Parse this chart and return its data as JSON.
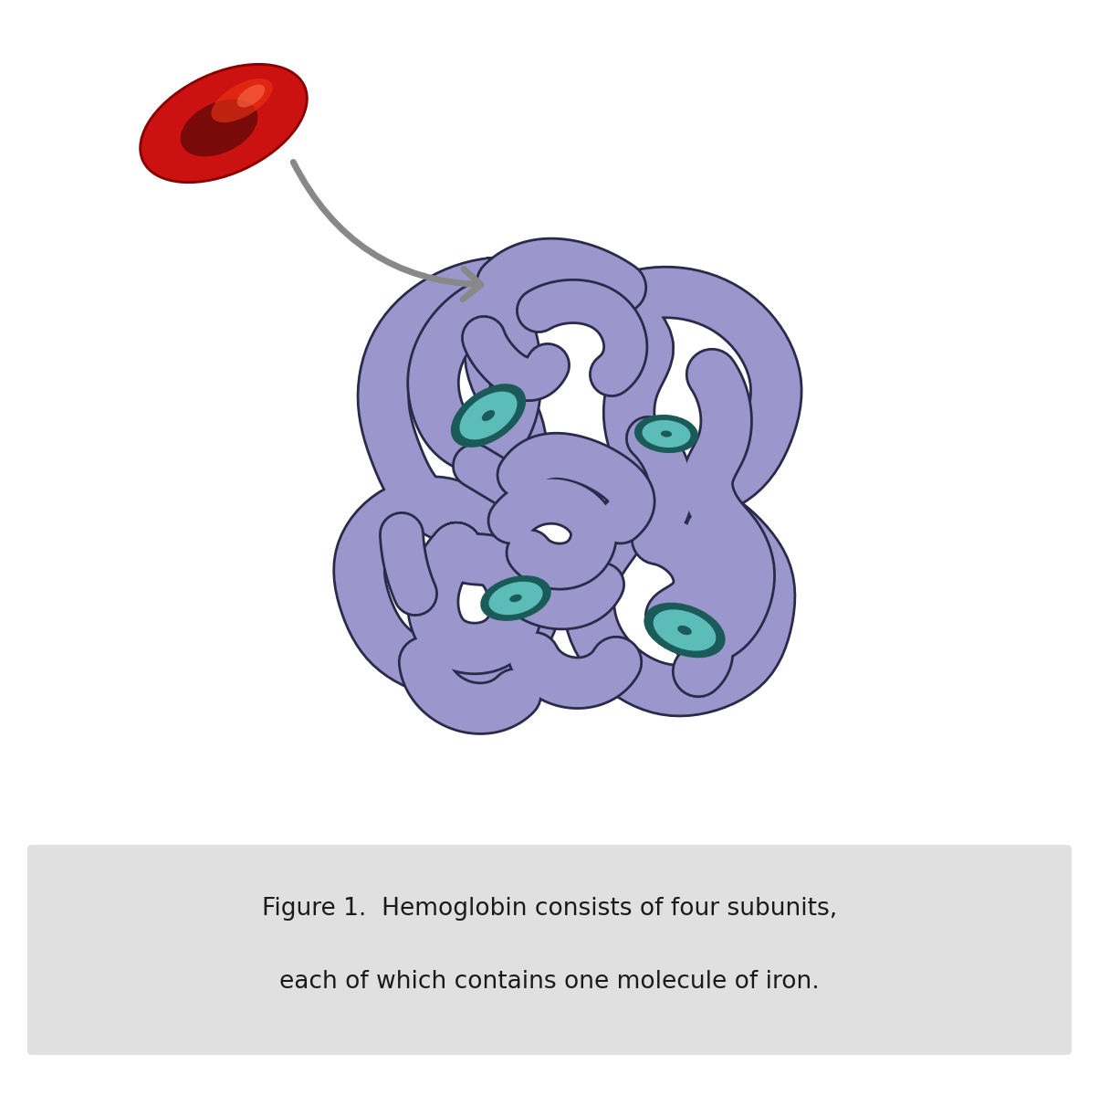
{
  "figure_caption_line1": "Figure 1.  Hemoglobin consists of four subunits,",
  "figure_caption_line2": "each of which contains one molecule of iron.",
  "caption_bg_color": "#e0e0e0",
  "caption_text_color": "#1a1a1a",
  "caption_fontsize": 19,
  "bg_color": "#ffffff",
  "protein_color": "#9b96cc",
  "protein_outline_color": "#2a2a4a",
  "iron_color": "#5bbcb8",
  "iron_outline_color": "#1a5a58",
  "rbc_color_outer": "#cc1111",
  "rbc_color_inner": "#7a0a0a",
  "rbc_highlight": "#ff5533",
  "arrow_color": "#888888"
}
